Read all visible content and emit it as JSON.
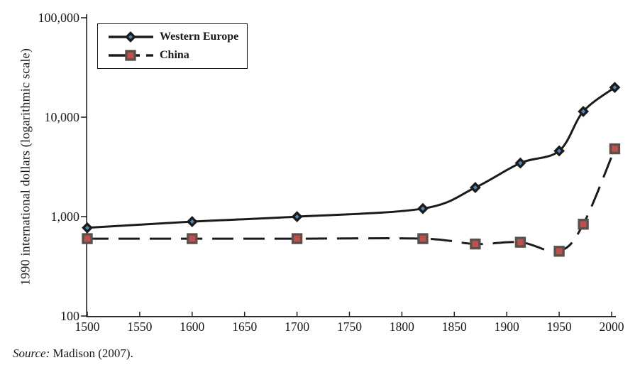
{
  "figure": {
    "source_prefix": "Source:",
    "source_text": " Madison (2007)."
  },
  "chart_data": {
    "type": "line",
    "title": "",
    "xlabel": "",
    "ylabel": "1990 international dollars (logarithmic scale)",
    "yscale": "log",
    "ylim": [
      100,
      100000
    ],
    "xlim": [
      1500,
      2005
    ],
    "grid": false,
    "legend_position": "top-left",
    "x_ticks": [
      1500,
      1550,
      1600,
      1650,
      1700,
      1750,
      1800,
      1850,
      1900,
      1950,
      2000
    ],
    "y_ticks": [
      {
        "value": 100,
        "label": "100"
      },
      {
        "value": 1000,
        "label": "1,000"
      },
      {
        "value": 10000,
        "label": "10,000"
      },
      {
        "value": 100000,
        "label": "100,000"
      }
    ],
    "x": [
      1500,
      1600,
      1700,
      1820,
      1870,
      1913,
      1950,
      1973,
      2003
    ],
    "series": [
      {
        "name": "Western Europe",
        "values": [
          771,
          890,
          998,
          1204,
          1960,
          3458,
          4579,
          11416,
          19912
        ],
        "line_style": "solid",
        "line_color": "#1b1b1b",
        "marker": "diamond",
        "marker_fill": "#4f81bd",
        "marker_border": "#1b1b1b"
      },
      {
        "name": "China",
        "values": [
          600,
          600,
          600,
          600,
          530,
          552,
          448,
          838,
          4803
        ],
        "line_style": "dashed",
        "line_color": "#1b1b1b",
        "marker": "square",
        "marker_fill": "#c0504d",
        "marker_border": "#5b504b"
      }
    ],
    "axis_color": "#1b1b1b"
  }
}
